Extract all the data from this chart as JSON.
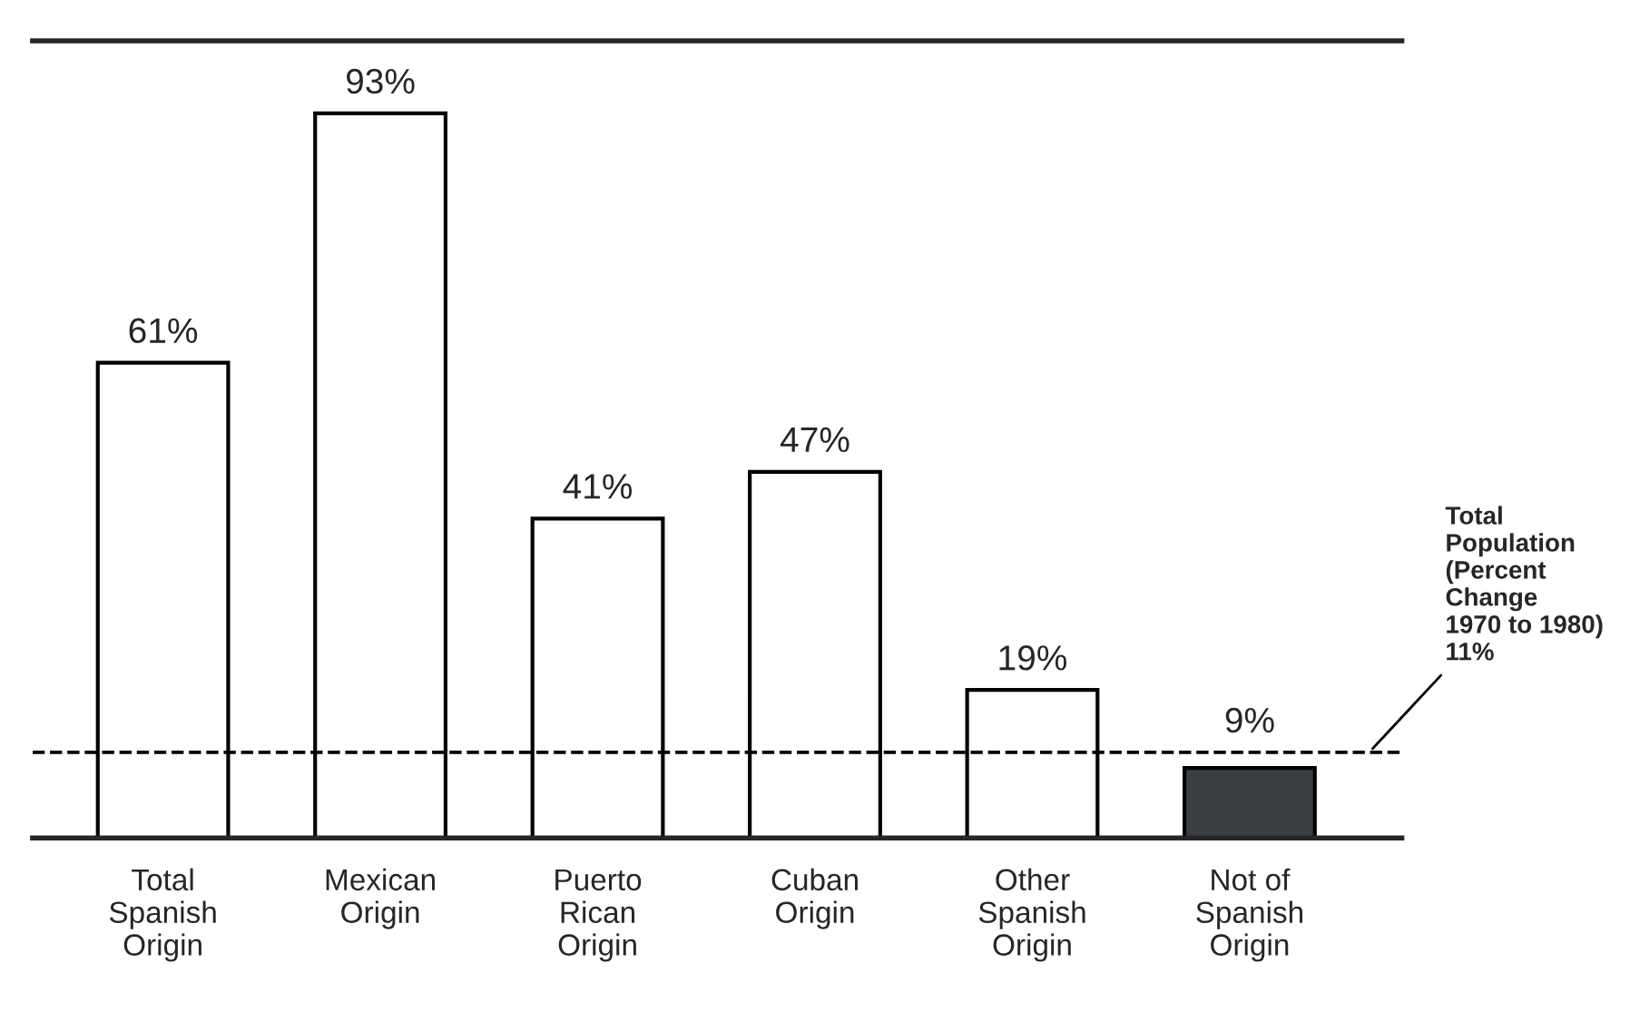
{
  "chart_data": {
    "type": "bar",
    "categories": [
      "Total\nSpanish\nOrigin",
      "Mexican\nOrigin",
      "Puerto\nRican\nOrigin",
      "Cuban\nOrigin",
      "Other\nSpanish\nOrigin",
      "Not of\nSpanish\nOrigin"
    ],
    "values": [
      61,
      93,
      41,
      47,
      19,
      9
    ],
    "colors": [
      "#ffffff",
      "#ffffff",
      "#ffffff",
      "#ffffff",
      "#ffffff",
      "#3a3f44"
    ],
    "value_labels": [
      "61%",
      "93%",
      "41%",
      "47%",
      "19%",
      "9%"
    ],
    "ref_lines": [
      {
        "axis": "y",
        "value": 11,
        "label": "Total\nPopulation\n(Percent\nChange\n1970 to 1980)\n11%",
        "line_style": "dashed",
        "color": "#000000"
      }
    ],
    "grid": false,
    "legend": false
  }
}
